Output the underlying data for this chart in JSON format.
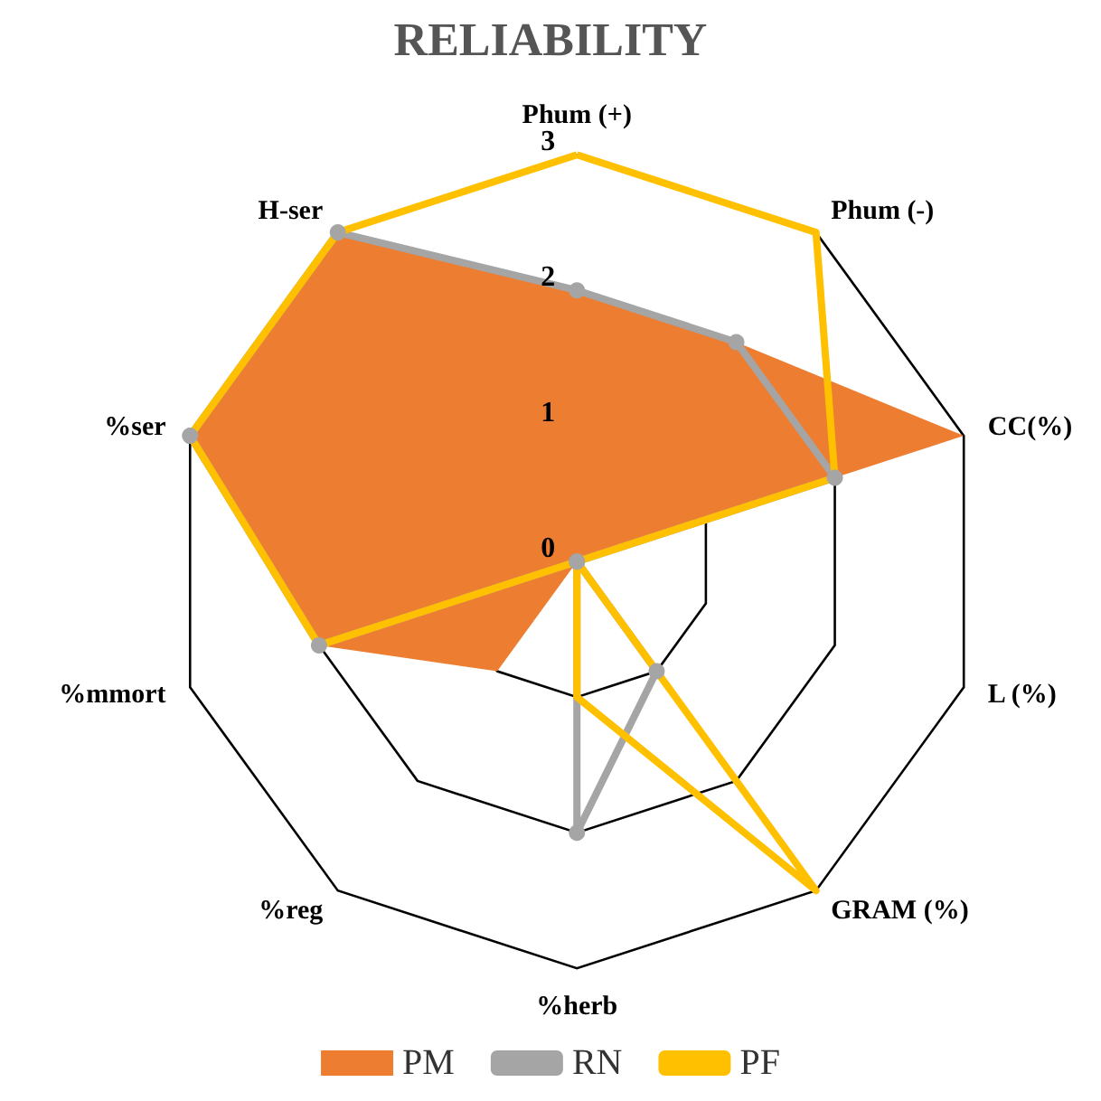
{
  "chart_data": {
    "type": "radar",
    "title": "RELIABILITY",
    "categories": [
      "Phum (+)",
      "Phum (-)",
      "CC(%)",
      "L (%)",
      "GRAM (%)",
      "%herb",
      "%reg",
      "%mmort",
      "%ser",
      "H-ser"
    ],
    "ylim": [
      0,
      3
    ],
    "yticks": [
      0,
      1,
      2,
      3
    ],
    "grid": true,
    "legend": "bottom",
    "series": [
      {
        "name": "PM",
        "type": "area",
        "color": "#ed7d31",
        "marker": "none",
        "values": [
          2,
          2,
          3,
          0,
          0,
          0,
          1,
          2,
          3,
          3
        ]
      },
      {
        "name": "RN",
        "color": "#a5a5a5",
        "marker": "circle",
        "values": [
          2,
          2,
          2,
          0,
          1,
          2,
          0,
          2,
          3,
          3
        ]
      },
      {
        "name": "PF",
        "color": "#ffc000",
        "marker": "none",
        "values": [
          3,
          3,
          2,
          0,
          3,
          1,
          0,
          2,
          3,
          3
        ]
      }
    ]
  }
}
